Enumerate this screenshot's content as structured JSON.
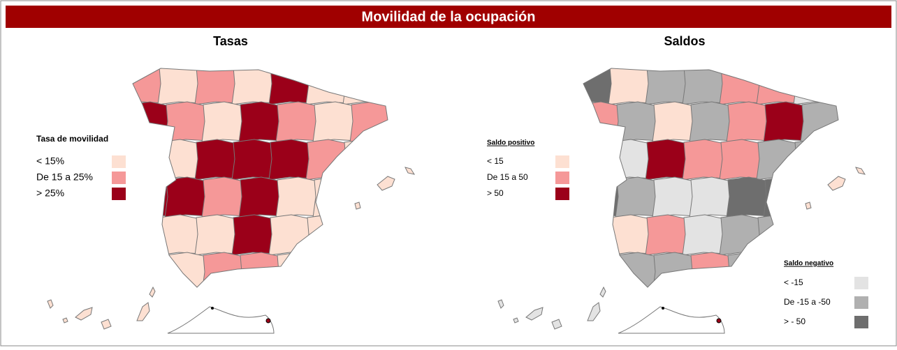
{
  "header": {
    "title": "Movilidad de la ocupación"
  },
  "maps": [
    {
      "title": "Tasas",
      "legends": [
        {
          "title": "Tasa de movilidad",
          "underline": false,
          "items": [
            {
              "label": "< 15%",
              "color": "#fde0d2"
            },
            {
              "label": "De 15 a 25%",
              "color": "#f59898"
            },
            {
              "label": "> 25%",
              "color": "#9b0019"
            }
          ]
        }
      ]
    },
    {
      "title": "Saldos",
      "legends": [
        {
          "title": "Saldo positivo",
          "underline": true,
          "items": [
            {
              "label": "< 15",
              "color": "#fde0d2"
            },
            {
              "label": "De 15 a 50",
              "color": "#f59898"
            },
            {
              "label": "> 50",
              "color": "#9b0019"
            }
          ]
        },
        {
          "title": "Saldo negativo",
          "underline": true,
          "items": [
            {
              "label": "< -15",
              "color": "#e3e3e3"
            },
            {
              "label": "De -15 a -50",
              "color": "#b0b0b0"
            },
            {
              "label": "> - 50",
              "color": "#6e6e6e"
            }
          ]
        }
      ]
    }
  ]
}
